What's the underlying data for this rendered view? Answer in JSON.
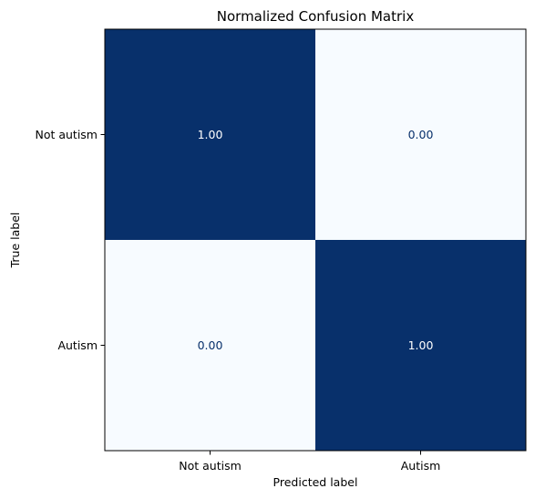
{
  "chart_data": {
    "type": "heatmap",
    "title": "Normalized Confusion Matrix",
    "xlabel": "Predicted label",
    "ylabel": "True label",
    "x_categories": [
      "Not autism",
      "Autism"
    ],
    "y_categories": [
      "Not autism",
      "Autism"
    ],
    "values": [
      [
        1.0,
        0.0
      ],
      [
        0.0,
        1.0
      ]
    ],
    "value_labels": [
      [
        "1.00",
        "0.00"
      ],
      [
        "0.00",
        "1.00"
      ]
    ],
    "value_range": [
      0,
      1
    ],
    "colormap": "Blues",
    "colors": {
      "low": "#f7fbff",
      "high": "#08306b",
      "text_on_dark": "#ffffff",
      "text_on_light": "#08306b"
    },
    "grid": false
  }
}
